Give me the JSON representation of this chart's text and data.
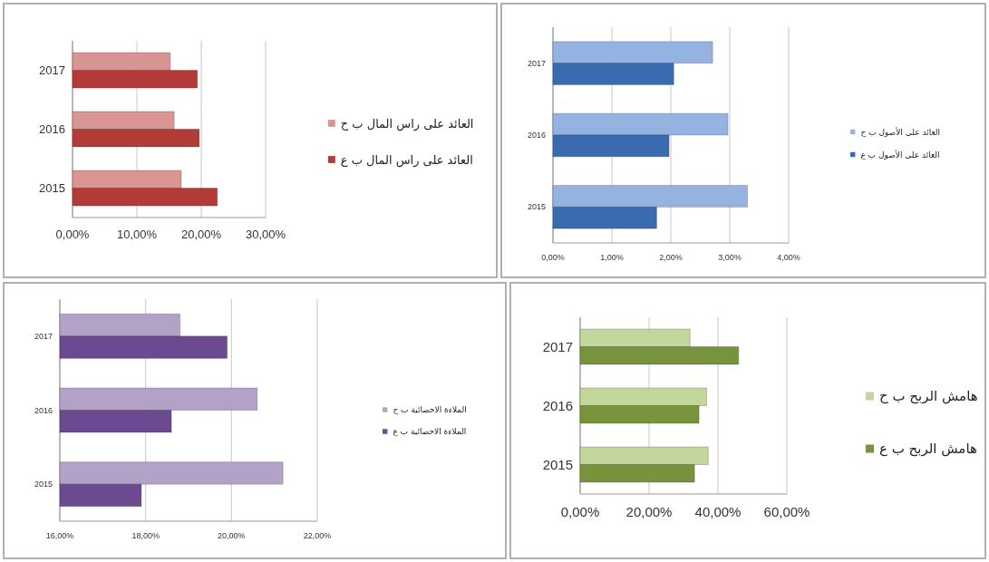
{
  "chart_data": [
    {
      "type": "bar",
      "orientation": "horizontal",
      "categories": [
        "2017",
        "2016",
        "2015"
      ],
      "series": [
        {
          "name": "العائد على راس المال ب ح",
          "color": "#d99594",
          "values": [
            15.2,
            15.8,
            16.9
          ]
        },
        {
          "name": "العائد على راس المال ب ع",
          "color": "#b23b38",
          "values": [
            19.4,
            19.7,
            22.5
          ]
        }
      ],
      "xlim": [
        0,
        30
      ],
      "xticks": [
        {
          "value": 0,
          "label": "0,00%"
        },
        {
          "value": 10,
          "label": "10,00%"
        },
        {
          "value": 20,
          "label": "20,00%"
        },
        {
          "value": 30,
          "label": "30,00%"
        }
      ],
      "grid": "x",
      "legend": "right"
    },
    {
      "type": "bar",
      "orientation": "horizontal",
      "categories": [
        "2017",
        "2016",
        "2015"
      ],
      "series": [
        {
          "name": "العائد على الأصول ب ح",
          "color": "#95b3e0",
          "values": [
            2.71,
            2.97,
            3.3
          ]
        },
        {
          "name": "العائد على الأصول ب ع",
          "color": "#3a6aaf",
          "values": [
            2.05,
            1.97,
            1.76
          ]
        }
      ],
      "xlim": [
        0,
        4
      ],
      "xticks": [
        {
          "value": 0,
          "label": "0,00%"
        },
        {
          "value": 1,
          "label": "1,00%"
        },
        {
          "value": 2,
          "label": "2,00%"
        },
        {
          "value": 3,
          "label": "3,00%"
        },
        {
          "value": 4,
          "label": "4,00%"
        }
      ],
      "grid": "x",
      "legend": "right"
    },
    {
      "type": "bar",
      "orientation": "horizontal",
      "categories": [
        "2017",
        "2016",
        "2015"
      ],
      "series": [
        {
          "name": "الملاءة الاحصائية ب ح",
          "color": "#b3a2c7",
          "values": [
            18.8,
            20.6,
            21.2
          ]
        },
        {
          "name": "الملاءة الاحصائية ب ع",
          "color": "#6b4a91",
          "values": [
            19.9,
            18.6,
            17.9
          ]
        }
      ],
      "xlim": [
        16,
        22
      ],
      "xticks": [
        {
          "value": 16,
          "label": "16,00%"
        },
        {
          "value": 18,
          "label": "18,00%"
        },
        {
          "value": 20,
          "label": "20,00%"
        },
        {
          "value": 22,
          "label": "22,00%"
        }
      ],
      "grid": "x",
      "legend": "right"
    },
    {
      "type": "bar",
      "orientation": "horizontal",
      "categories": [
        "2017",
        "2016",
        "2015"
      ],
      "series": [
        {
          "name": "هامش الربح ب ح",
          "color": "#c3d69b",
          "values": [
            31.9,
            36.7,
            37.2
          ]
        },
        {
          "name": "هامش الربح ب ع",
          "color": "#77933c",
          "values": [
            46.0,
            34.5,
            33.2
          ]
        }
      ],
      "xlim": [
        0,
        60
      ],
      "xticks": [
        {
          "value": 0,
          "label": "0,00%"
        },
        {
          "value": 20,
          "label": "20,00%"
        },
        {
          "value": 40,
          "label": "40,00%"
        },
        {
          "value": 60,
          "label": "60,00%"
        }
      ],
      "grid": "x",
      "legend": "right"
    }
  ]
}
